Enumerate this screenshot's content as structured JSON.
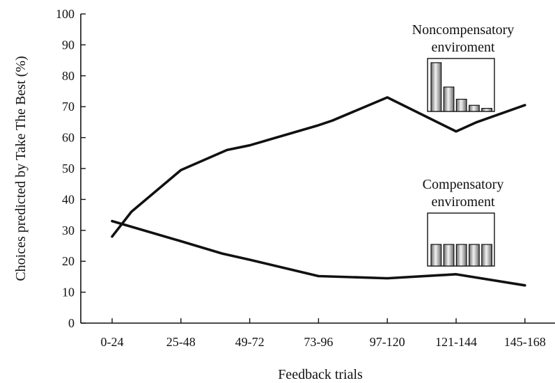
{
  "chart_data": {
    "type": "line",
    "title": "",
    "xlabel": "Feedback trials",
    "ylabel": "Choices predicted by Take The Best (%)",
    "categories": [
      "0-24",
      "25-48",
      "49-72",
      "73-96",
      "97-120",
      "121-144",
      "145-168"
    ],
    "ylim": [
      0,
      100
    ],
    "yticks": [
      0,
      10,
      20,
      30,
      40,
      50,
      60,
      70,
      80,
      90,
      100
    ],
    "grid": false,
    "series": [
      {
        "name": "Noncompensatory enviroment",
        "x": [
          0,
          0.28,
          1,
          1.67,
          2,
          3,
          3.2,
          4,
          5,
          5.3,
          6
        ],
        "values": [
          28,
          36,
          49.5,
          56,
          57.5,
          64,
          65.5,
          73,
          62,
          65,
          70.5
        ]
      },
      {
        "name": "Compensatory enviroment",
        "x": [
          0,
          1,
          1.6,
          2,
          3,
          4,
          5,
          6
        ],
        "values": [
          33,
          26.5,
          22.5,
          20.5,
          15.2,
          14.5,
          15.8,
          12.2
        ]
      }
    ],
    "annotations": [
      {
        "label_lines": [
          "Noncompensatory",
          "enviroment"
        ],
        "series": "Noncompensatory enviroment",
        "weights_bars": [
          1.0,
          0.5,
          0.25,
          0.125,
          0.0625
        ]
      },
      {
        "label_lines": [
          "Compensatory",
          "enviroment"
        ],
        "series": "Compensatory enviroment",
        "weights_bars": [
          1,
          1,
          1,
          1,
          1
        ]
      }
    ]
  }
}
